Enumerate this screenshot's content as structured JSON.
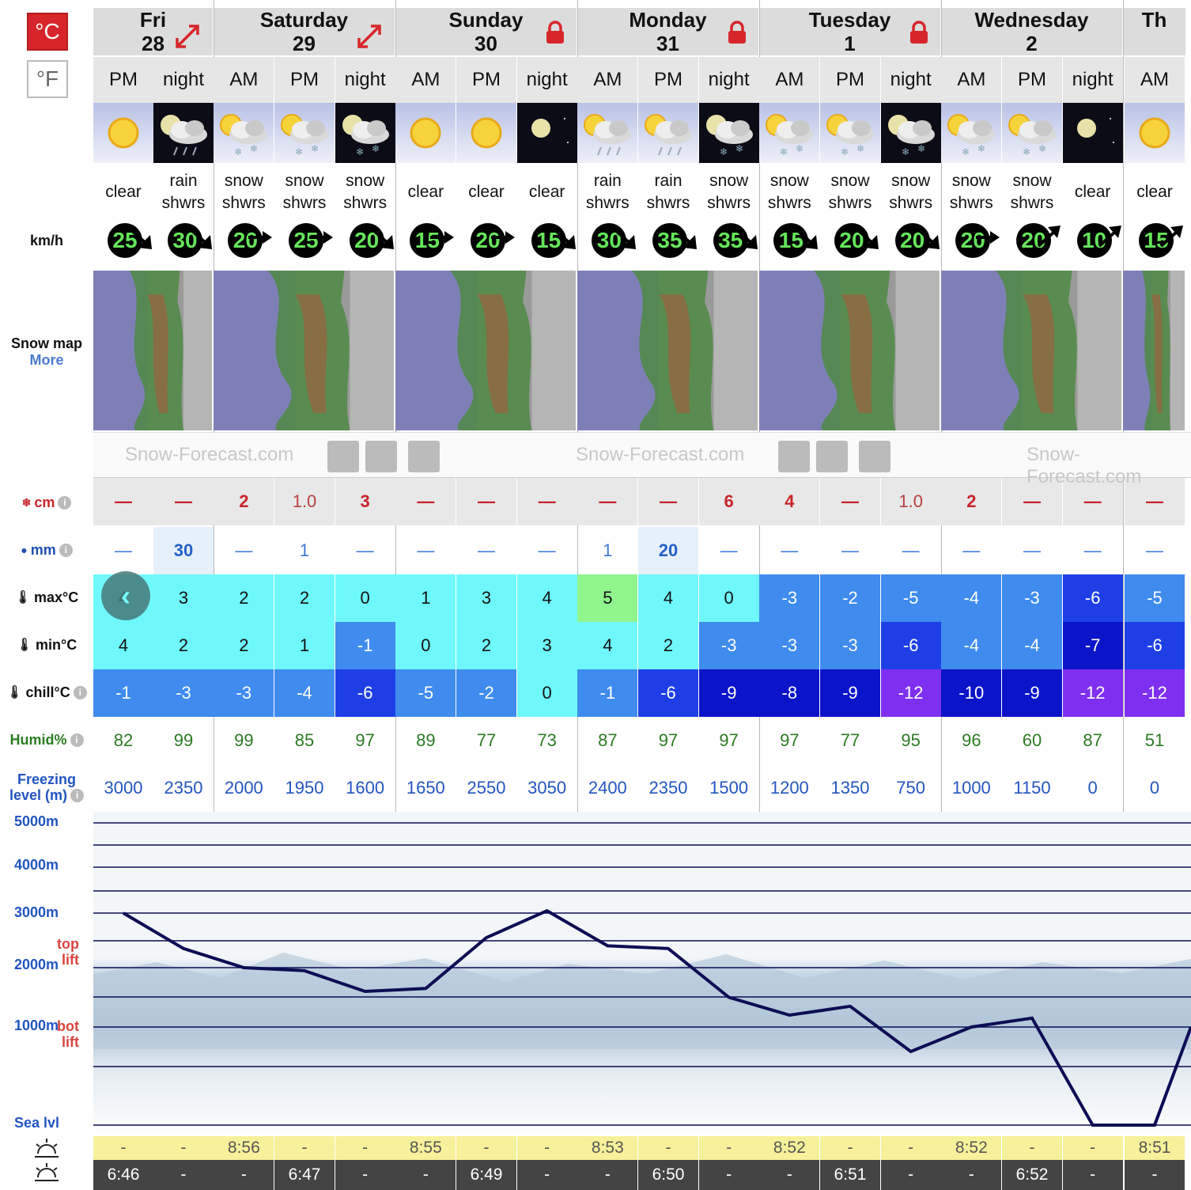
{
  "units": {
    "celsius": "°C",
    "fahrenheit": "°F"
  },
  "labels": {
    "wind_unit": "km/h",
    "snow_map": "Snow map",
    "more": "More",
    "snow_cm": "cm",
    "rain_mm": "mm",
    "max_c": "max°C",
    "min_c": "min°C",
    "chill_c": "chill°C",
    "humid": "Humid%",
    "freezing_1": "Freezing",
    "freezing_2": "level (m)",
    "info": "i"
  },
  "altitude_labels": [
    "5000m",
    "4000m",
    "3000m",
    "2000m",
    "1000m",
    "Sea lvl"
  ],
  "lift_labels": {
    "top_1": "top",
    "top_2": "lift",
    "bot_1": "bot",
    "bot_2": "lift"
  },
  "banner_text": "Snow-Forecast.com",
  "days": [
    {
      "name": "Fri",
      "date": "28",
      "badge": "expand",
      "periods": 2
    },
    {
      "name": "Saturday",
      "date": "29",
      "badge": "expand",
      "periods": 3
    },
    {
      "name": "Sunday",
      "date": "30",
      "badge": "lock",
      "periods": 3
    },
    {
      "name": "Monday",
      "date": "31",
      "badge": "lock",
      "periods": 3
    },
    {
      "name": "Tuesday",
      "date": "1",
      "badge": "lock",
      "periods": 3
    },
    {
      "name": "Wednesday",
      "date": "2",
      "badge": "none",
      "periods": 3
    },
    {
      "name": "Th",
      "date": "",
      "badge": "none",
      "periods": 1
    }
  ],
  "periods": [
    {
      "p": "PM",
      "icon": "sun-icon",
      "sky": "day",
      "s1": "clear",
      "s2": "",
      "wind": "25",
      "dir": "se",
      "snow": "—",
      "snow_style": "dash",
      "rain": "—",
      "rain_style": "dash",
      "max": "4",
      "min": "4",
      "chill": "-1",
      "humid": "82",
      "freeze": "3000",
      "top": "3",
      "bot": "5",
      "rise": "-",
      "set": "6:46"
    },
    {
      "p": "night",
      "icon": "rain-cloud-moon-icon",
      "sky": "night",
      "s1": "rain",
      "s2": "shwrs",
      "wind": "30",
      "dir": "se",
      "snow": "—",
      "snow_style": "dash",
      "rain": "30",
      "rain_style": "heavy",
      "max": "3",
      "min": "2",
      "chill": "-3",
      "humid": "99",
      "freeze": "2350",
      "top": "1",
      "bot": "4",
      "rise": "-",
      "set": "-"
    },
    {
      "p": "AM",
      "icon": "snow-cloud-sun-icon",
      "sky": "day",
      "s1": "snow",
      "s2": "shwrs",
      "wind": "20",
      "dir": "e",
      "snow": "2",
      "snow_style": "bold",
      "rain": "—",
      "rain_style": "dash",
      "max": "2",
      "min": "2",
      "chill": "-3",
      "humid": "99",
      "freeze": "2000",
      "top": "-2",
      "bot": "5",
      "rise": "8:56",
      "set": "-"
    },
    {
      "p": "PM",
      "icon": "snow-cloud-sun-icon",
      "sky": "day",
      "s1": "snow",
      "s2": "shwrs",
      "wind": "25",
      "dir": "e",
      "snow": "1.0",
      "snow_style": "light",
      "rain": "1",
      "rain_style": "light",
      "max": "2",
      "min": "1",
      "chill": "-4",
      "humid": "85",
      "freeze": "1950",
      "top": "-2",
      "bot": "5",
      "rise": "-",
      "set": "6:47"
    },
    {
      "p": "night",
      "icon": "snow-cloud-moon-icon",
      "sky": "night",
      "s1": "snow",
      "s2": "shwrs",
      "wind": "20",
      "dir": "se",
      "snow": "3",
      "snow_style": "bold",
      "rain": "—",
      "rain_style": "dash",
      "max": "0",
      "min": "-1",
      "chill": "-6",
      "humid": "97",
      "freeze": "1600",
      "top": "-3",
      "bot": "3",
      "rise": "-",
      "set": "-"
    },
    {
      "p": "AM",
      "icon": "sun-icon",
      "sky": "day",
      "s1": "clear",
      "s2": "",
      "wind": "15",
      "dir": "e",
      "snow": "—",
      "snow_style": "dash",
      "rain": "—",
      "rain_style": "dash",
      "max": "1",
      "min": "0",
      "chill": "-5",
      "humid": "89",
      "freeze": "1650",
      "top": "-2",
      "bot": "3",
      "rise": "8:55",
      "set": "-"
    },
    {
      "p": "PM",
      "icon": "sun-icon",
      "sky": "day",
      "s1": "clear",
      "s2": "",
      "wind": "20",
      "dir": "e",
      "snow": "—",
      "snow_style": "dash",
      "rain": "—",
      "rain_style": "dash",
      "max": "3",
      "min": "2",
      "chill": "-2",
      "humid": "77",
      "freeze": "2550",
      "top": "1",
      "bot": "6",
      "rise": "-",
      "set": "6:49"
    },
    {
      "p": "night",
      "icon": "moon-icon",
      "sky": "night",
      "s1": "clear",
      "s2": "",
      "wind": "15",
      "dir": "se",
      "snow": "—",
      "snow_style": "dash",
      "rain": "—",
      "rain_style": "dash",
      "max": "4",
      "min": "3",
      "chill": "0",
      "humid": "73",
      "freeze": "3050",
      "top": "2",
      "bot": "4",
      "rise": "-",
      "set": "-"
    },
    {
      "p": "AM",
      "icon": "rain-cloud-sun-icon",
      "sky": "day",
      "s1": "rain",
      "s2": "shwrs",
      "wind": "30",
      "dir": "se",
      "snow": "—",
      "snow_style": "dash",
      "rain": "1",
      "rain_style": "light",
      "max": "5",
      "min": "4",
      "chill": "-1",
      "humid": "87",
      "freeze": "2400",
      "top": "2",
      "bot": "7",
      "rise": "8:53",
      "set": "-"
    },
    {
      "p": "PM",
      "icon": "rain-cloud-sun-icon",
      "sky": "day",
      "s1": "rain",
      "s2": "shwrs",
      "wind": "35",
      "dir": "se",
      "snow": "—",
      "snow_style": "dash",
      "rain": "20",
      "rain_style": "heavy",
      "max": "4",
      "min": "2",
      "chill": "-6",
      "humid": "97",
      "freeze": "2350",
      "top": "-1",
      "bot": "6",
      "rise": "-",
      "set": "6:50"
    },
    {
      "p": "night",
      "icon": "snow-cloud-moon-icon",
      "sky": "night",
      "s1": "snow",
      "s2": "shwrs",
      "wind": "35",
      "dir": "se",
      "snow": "6",
      "snow_style": "bold",
      "rain": "—",
      "rain_style": "dash",
      "max": "0",
      "min": "-3",
      "chill": "-9",
      "humid": "97",
      "freeze": "1500",
      "top": "-5",
      "bot": "2",
      "rise": "-",
      "set": "-"
    },
    {
      "p": "AM",
      "icon": "snow-cloud-sun-icon",
      "sky": "day",
      "s1": "snow",
      "s2": "shwrs",
      "wind": "15",
      "dir": "se",
      "snow": "4",
      "snow_style": "bold",
      "rain": "—",
      "rain_style": "dash",
      "max": "-3",
      "min": "-3",
      "chill": "-8",
      "humid": "97",
      "freeze": "1200",
      "top": "-7",
      "bot": "1",
      "rise": "8:52",
      "set": "-"
    },
    {
      "p": "PM",
      "icon": "snow-cloud-sun-icon",
      "sky": "day",
      "s1": "snow",
      "s2": "shwrs",
      "wind": "20",
      "dir": "se",
      "snow": "—",
      "snow_style": "dash",
      "rain": "—",
      "rain_style": "dash",
      "max": "-2",
      "min": "-3",
      "chill": "-9",
      "humid": "77",
      "freeze": "1350",
      "top": "-7",
      "bot": "1",
      "rise": "-",
      "set": "6:51"
    },
    {
      "p": "night",
      "icon": "snow-cloud-moon-icon",
      "sky": "night",
      "s1": "snow",
      "s2": "shwrs",
      "wind": "20",
      "dir": "se",
      "snow": "1.0",
      "snow_style": "light",
      "rain": "—",
      "rain_style": "dash",
      "max": "-5",
      "min": "-6",
      "chill": "-12",
      "humid": "95",
      "freeze": "750",
      "top": "-9",
      "bot": "-3",
      "rise": "-",
      "set": "-"
    },
    {
      "p": "AM",
      "icon": "snow-cloud-sun-icon",
      "sky": "day",
      "s1": "snow",
      "s2": "shwrs",
      "wind": "20",
      "dir": "e",
      "snow": "2",
      "snow_style": "bold",
      "rain": "—",
      "rain_style": "dash",
      "max": "-4",
      "min": "-4",
      "chill": "-10",
      "humid": "96",
      "freeze": "1000",
      "top": "-8",
      "bot": "0",
      "rise": "8:52",
      "set": "-"
    },
    {
      "p": "PM",
      "icon": "snow-cloud-sun-icon",
      "sky": "day",
      "s1": "snow",
      "s2": "shwrs",
      "wind": "20",
      "dir": "ne",
      "snow": "—",
      "snow_style": "dash",
      "rain": "—",
      "rain_style": "dash",
      "max": "-3",
      "min": "-4",
      "chill": "-9",
      "humid": "60",
      "freeze": "1150",
      "top": "-5",
      "bot": "0",
      "rise": "-",
      "set": "6:52"
    },
    {
      "p": "night",
      "icon": "moon-icon",
      "sky": "night",
      "s1": "clear",
      "s2": "",
      "wind": "10",
      "dir": "ne",
      "snow": "—",
      "snow_style": "dash",
      "rain": "—",
      "rain_style": "dash",
      "max": "-6",
      "min": "-7",
      "chill": "-12",
      "humid": "87",
      "freeze": "0",
      "top": "-7",
      "bot": "-7",
      "rise": "-",
      "set": "-"
    },
    {
      "p": "AM",
      "icon": "sun-icon",
      "sky": "day",
      "s1": "clear",
      "s2": "",
      "wind": "15",
      "dir": "ne",
      "snow": "—",
      "snow_style": "dash",
      "rain": "—",
      "rain_style": "dash",
      "max": "-5",
      "min": "-6",
      "chill": "-12",
      "humid": "51",
      "freeze": "0",
      "top": "-6",
      "bot": "-5",
      "rise": "8:51",
      "set": "-"
    }
  ],
  "colors": {
    "temp_warm": "#8ff58c",
    "temp_mild": "#6ff8fb",
    "temp_cool": "#3f8bee",
    "temp_cold": "#1f3fe6",
    "temp_very_cold": "#0b14c8",
    "temp_frigid": "#7f2ff0",
    "freezing_line": "#0d0d55",
    "accent_red": "#d7262b"
  }
}
